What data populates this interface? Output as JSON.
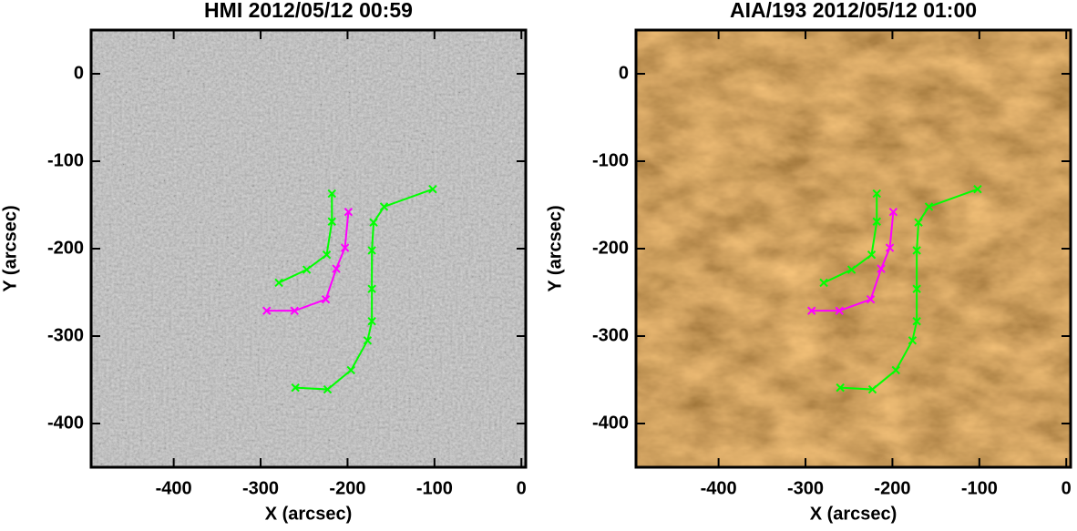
{
  "chart_data": [
    {
      "type": "line",
      "title": "HMI 2012/05/12 00:59",
      "xlabel": "X (arcsec)",
      "ylabel": "Y (arcsec)",
      "xlim": [
        -495,
        5
      ],
      "ylim": [
        -450,
        50
      ],
      "xticks": [
        -400,
        -300,
        -200,
        -100,
        0
      ],
      "yticks": [
        0,
        -100,
        -200,
        -300,
        -400
      ],
      "series": [
        {
          "color": "#00ff00",
          "x": [
            -279,
            -247,
            -224,
            -218,
            -218
          ],
          "values": [
            -239,
            -224,
            -207,
            -169,
            -137
          ]
        },
        {
          "color": "#00ff00",
          "x": [
            -260,
            -223,
            -196,
            -177,
            -172,
            -172,
            -172,
            -170,
            -158,
            -102
          ],
          "values": [
            -359,
            -361,
            -339,
            -305,
            -283,
            -246,
            -202,
            -170,
            -152,
            -132
          ]
        },
        {
          "color": "#ff00ff",
          "x": [
            -293,
            -261,
            -225,
            -213,
            -203,
            -199
          ],
          "values": [
            -271,
            -271,
            -258,
            -223,
            -199,
            -158
          ]
        }
      ]
    },
    {
      "type": "line",
      "title": "AIA/193 2012/05/12 01:00",
      "xlabel": "X (arcsec)",
      "ylabel": "Y (arcsec)",
      "xlim": [
        -495,
        5
      ],
      "ylim": [
        -450,
        50
      ],
      "xticks": [
        -400,
        -300,
        -200,
        -100,
        0
      ],
      "yticks": [
        0,
        -100,
        -200,
        -300,
        -400
      ],
      "series": [
        {
          "color": "#00ff00",
          "x": [
            -279,
            -247,
            -224,
            -218,
            -218
          ],
          "values": [
            -239,
            -224,
            -207,
            -169,
            -137
          ]
        },
        {
          "color": "#00ff00",
          "x": [
            -260,
            -223,
            -196,
            -177,
            -172,
            -172,
            -172,
            -170,
            -158,
            -102
          ],
          "values": [
            -359,
            -361,
            -339,
            -305,
            -283,
            -246,
            -202,
            -170,
            -152,
            -132
          ]
        },
        {
          "color": "#ff00ff",
          "x": [
            -293,
            -261,
            -225,
            -213,
            -203,
            -199
          ],
          "values": [
            -271,
            -271,
            -258,
            -223,
            -199,
            -158
          ]
        }
      ]
    }
  ]
}
